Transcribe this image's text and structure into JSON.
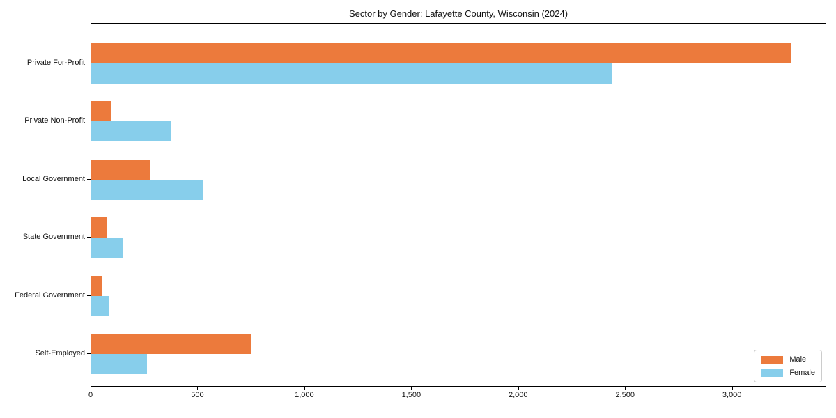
{
  "chart_data": {
    "type": "bar",
    "orientation": "horizontal",
    "title": "Sector by Gender: Lafayette County, Wisconsin (2024)",
    "categories": [
      "Private For-Profit",
      "Private Non-Profit",
      "Local Government",
      "State Government",
      "Federal Government",
      "Self-Employed"
    ],
    "series": [
      {
        "name": "Male",
        "color": "#EC7A3C",
        "values": [
          3277,
          90,
          274,
          72,
          48,
          746
        ]
      },
      {
        "name": "Female",
        "color": "#87CEEB",
        "values": [
          2441,
          374,
          524,
          146,
          80,
          261
        ]
      }
    ],
    "xlabel": "",
    "ylabel": "",
    "xlim": [
      0,
      3441
    ],
    "xticks": [
      0,
      500,
      1000,
      1500,
      2000,
      2500,
      3000
    ],
    "xtick_labels": [
      "0",
      "500",
      "1,000",
      "1,500",
      "2,000",
      "2,500",
      "3,000"
    ],
    "grid": false,
    "legend_position": "lower right",
    "plot_border_color": "#000000",
    "background_color": "#ffffff"
  }
}
